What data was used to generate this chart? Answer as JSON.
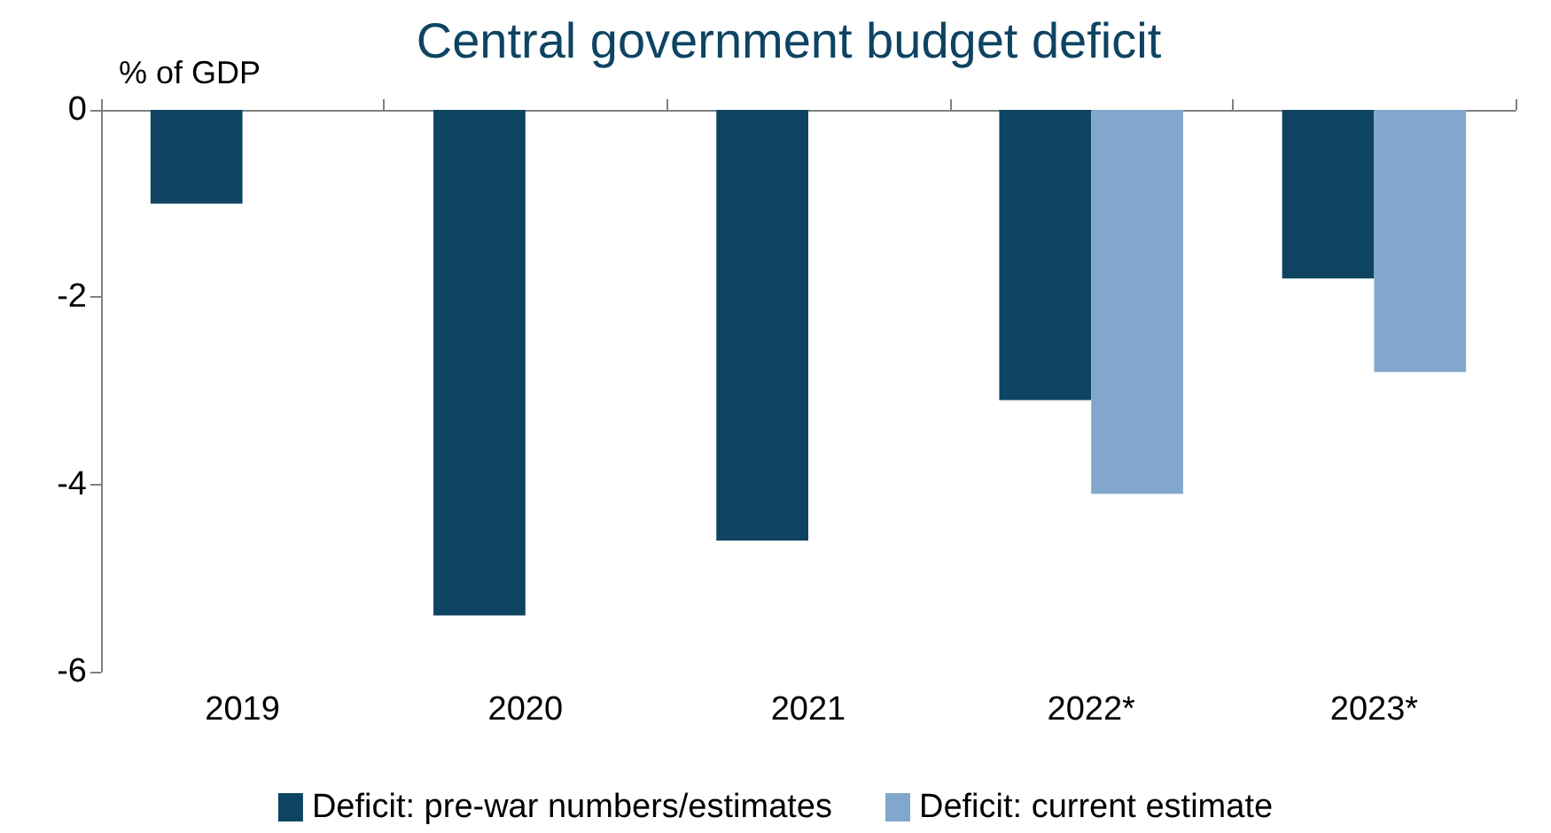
{
  "chart_data": {
    "type": "bar",
    "title": "Central government budget deficit",
    "ylabel": "% of GDP",
    "categories": [
      "2019",
      "2020",
      "2021",
      "2022*",
      "2023*"
    ],
    "series": [
      {
        "name": "Deficit: pre-war numbers/estimates",
        "color": "#0e4462",
        "values": [
          -1.0,
          -5.4,
          -4.6,
          -3.1,
          -1.8
        ]
      },
      {
        "name": "Deficit: current estimate",
        "color": "#81a8cc",
        "values": [
          null,
          null,
          null,
          -4.1,
          -2.8
        ]
      }
    ],
    "ylim": [
      -6,
      0
    ],
    "yticks": [
      -6,
      -4,
      -2,
      0
    ],
    "grid": false,
    "legend": "bottom"
  }
}
